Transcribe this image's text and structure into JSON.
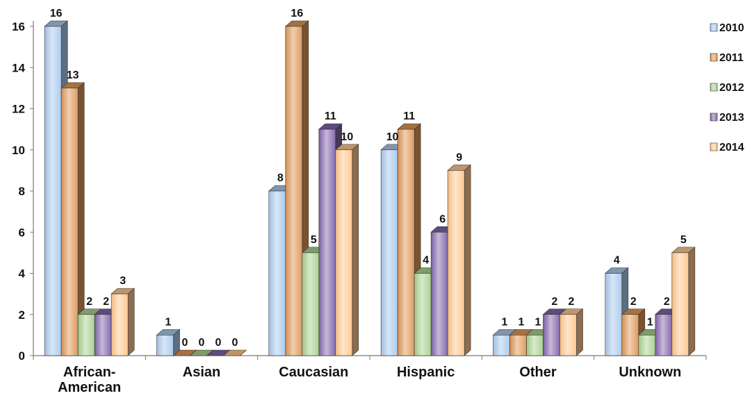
{
  "chart_data": {
    "type": "bar",
    "title": "",
    "xlabel": "",
    "ylabel": "",
    "ylim": [
      0,
      16
    ],
    "yticks": [
      0,
      2,
      4,
      6,
      8,
      10,
      12,
      14,
      16
    ],
    "grid": false,
    "legend_position": "right",
    "style": "3d",
    "categories": [
      "African-American",
      "Asian",
      "Caucasian",
      "Hispanic",
      "Other",
      "Unknown"
    ],
    "category_lines": [
      [
        "African-",
        "American"
      ],
      [
        "Asian"
      ],
      [
        "Caucasian"
      ],
      [
        "Hispanic"
      ],
      [
        "Other"
      ],
      [
        "Unknown"
      ]
    ],
    "series": [
      {
        "name": "2010",
        "values": [
          16,
          1,
          8,
          10,
          1,
          4
        ],
        "color": "#a9c8ec"
      },
      {
        "name": "2011",
        "values": [
          13,
          0,
          16,
          11,
          1,
          2
        ],
        "color": "#de9556"
      },
      {
        "name": "2012",
        "values": [
          2,
          0,
          5,
          4,
          1,
          1
        ],
        "color": "#a8d08d"
      },
      {
        "name": "2013",
        "values": [
          2,
          0,
          11,
          6,
          2,
          2
        ],
        "color": "#8063a8"
      },
      {
        "name": "2014",
        "values": [
          3,
          0,
          10,
          9,
          2,
          5
        ],
        "color": "#ffc68c"
      }
    ]
  }
}
